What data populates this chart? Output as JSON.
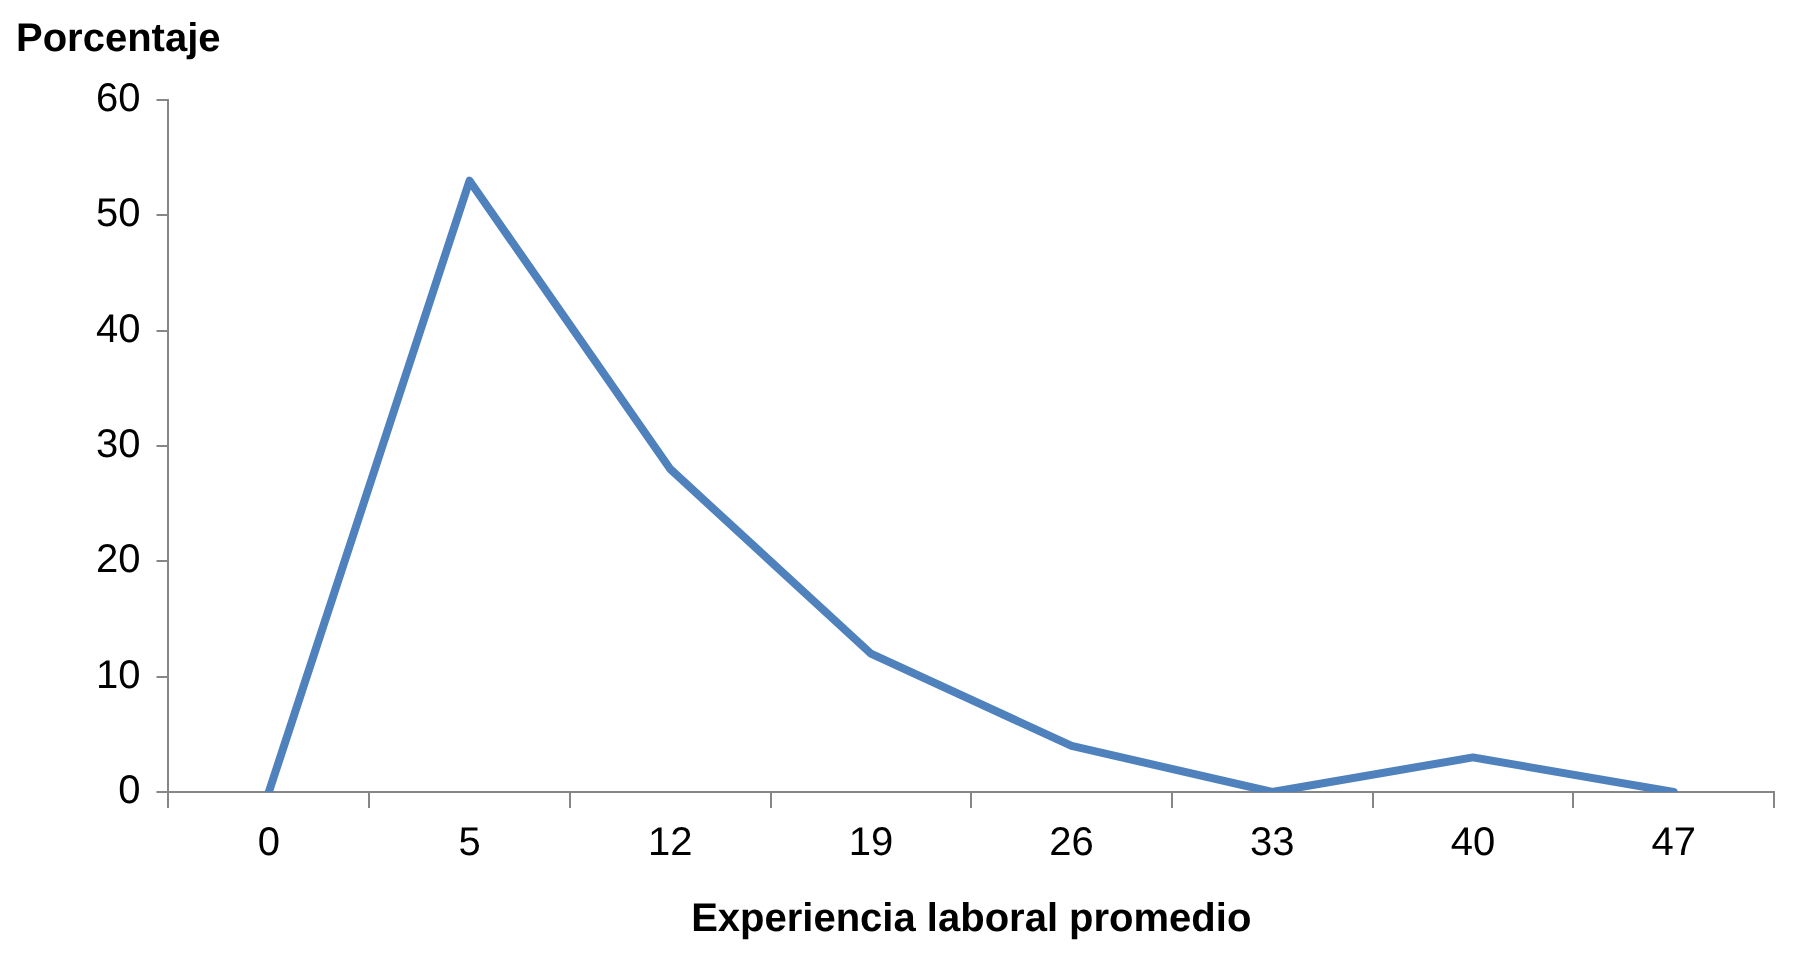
{
  "chart_data": {
    "type": "line",
    "ylabel": "Porcentaje",
    "xlabel": "Experiencia laboral promedio",
    "categories": [
      "0",
      "5",
      "12",
      "19",
      "26",
      "33",
      "40",
      "47"
    ],
    "series": [
      {
        "color": "#4f81bd",
        "values": [
          0,
          53,
          28,
          12,
          4,
          0,
          3,
          0
        ]
      }
    ],
    "ylim": [
      0,
      60
    ],
    "yticks": [
      0,
      10,
      20,
      30,
      40,
      50,
      60
    ],
    "grid": false,
    "legend": false,
    "marker": "none",
    "line_style": "solid"
  }
}
